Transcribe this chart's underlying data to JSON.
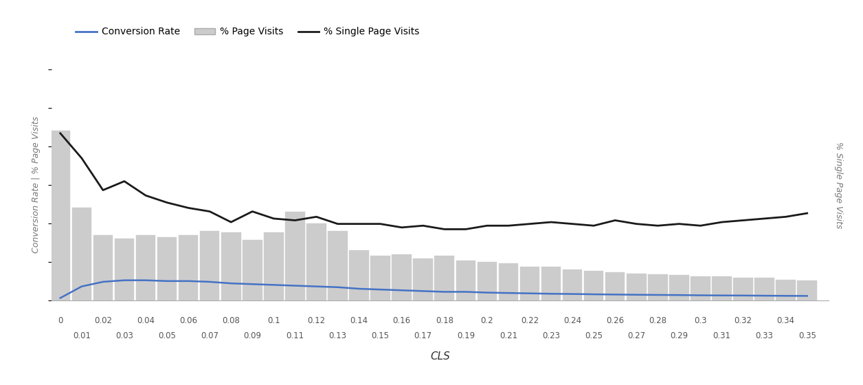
{
  "bar_x": [
    0,
    0.01,
    0.02,
    0.03,
    0.04,
    0.05,
    0.06,
    0.07,
    0.08,
    0.09,
    0.1,
    0.11,
    0.12,
    0.13,
    0.14,
    0.15,
    0.16,
    0.17,
    0.18,
    0.19,
    0.2,
    0.21,
    0.22,
    0.23,
    0.24,
    0.25,
    0.26,
    0.27,
    0.28,
    0.29,
    0.3,
    0.31,
    0.32,
    0.33,
    0.34,
    0.35
  ],
  "bar_heights": [
    22.0,
    12.0,
    8.5,
    8.0,
    8.5,
    8.2,
    8.5,
    9.0,
    8.8,
    7.8,
    8.8,
    11.5,
    10.0,
    9.0,
    6.5,
    5.8,
    6.0,
    5.4,
    5.8,
    5.2,
    5.0,
    4.8,
    4.4,
    4.4,
    4.0,
    3.8,
    3.6,
    3.5,
    3.4,
    3.3,
    3.1,
    3.1,
    2.9,
    2.9,
    2.7,
    2.6
  ],
  "conversion_rate_x": [
    0,
    0.01,
    0.02,
    0.03,
    0.04,
    0.05,
    0.06,
    0.07,
    0.08,
    0.09,
    0.1,
    0.11,
    0.12,
    0.13,
    0.14,
    0.15,
    0.16,
    0.17,
    0.18,
    0.19,
    0.2,
    0.21,
    0.22,
    0.23,
    0.24,
    0.25,
    0.26,
    0.27,
    0.28,
    0.29,
    0.3,
    0.31,
    0.32,
    0.33,
    0.34,
    0.35
  ],
  "conversion_rate": [
    0.3,
    1.8,
    2.4,
    2.6,
    2.6,
    2.5,
    2.5,
    2.4,
    2.2,
    2.1,
    2.0,
    1.9,
    1.8,
    1.7,
    1.5,
    1.4,
    1.3,
    1.2,
    1.1,
    1.1,
    1.0,
    0.95,
    0.9,
    0.85,
    0.82,
    0.78,
    0.75,
    0.72,
    0.7,
    0.68,
    0.65,
    0.63,
    0.62,
    0.6,
    0.58,
    0.57
  ],
  "single_page_visits_x": [
    0,
    0.01,
    0.02,
    0.03,
    0.04,
    0.05,
    0.06,
    0.07,
    0.08,
    0.09,
    0.1,
    0.11,
    0.12,
    0.13,
    0.14,
    0.15,
    0.16,
    0.17,
    0.18,
    0.19,
    0.2,
    0.21,
    0.22,
    0.23,
    0.24,
    0.25,
    0.26,
    0.27,
    0.28,
    0.29,
    0.3,
    0.31,
    0.32,
    0.33,
    0.34,
    0.35
  ],
  "single_page_visits": [
    94,
    80,
    62,
    67,
    59,
    55,
    52,
    50,
    44,
    50,
    46,
    45,
    47,
    43,
    43,
    43,
    41,
    42,
    40,
    40,
    42,
    42,
    43,
    44,
    43,
    42,
    45,
    43,
    42,
    43,
    42,
    44,
    45,
    46,
    47,
    49
  ],
  "left_ylim": [
    0,
    30
  ],
  "right_ylim": [
    0,
    130
  ],
  "bar_color": "#cccccc",
  "bar_edgecolor": "#cccccc",
  "conversion_color": "#4472C4",
  "single_page_color": "#1a1a1a",
  "ylabel_left": "Conversion Rate | % Page Visits",
  "ylabel_right": "% Single Page Visits",
  "xlabel": "CLS",
  "legend_items": [
    "Conversion Rate",
    "% Page Visits",
    "% Single Page Visits"
  ],
  "top_tick_x": [
    0,
    0.02,
    0.04,
    0.06,
    0.08,
    0.1,
    0.12,
    0.14,
    0.16,
    0.18,
    0.2,
    0.22,
    0.24,
    0.26,
    0.28,
    0.3,
    0.32,
    0.34
  ],
  "top_tick_labels": [
    "0",
    "0.02",
    "0.04",
    "0.06",
    "0.08",
    "0.1",
    "0.12",
    "0.14",
    "0.16",
    "0.18",
    "0.2",
    "0.22",
    "0.24",
    "0.26",
    "0.28",
    "0.3",
    "0.32",
    "0.34"
  ],
  "bot_tick_x": [
    0.01,
    0.03,
    0.05,
    0.07,
    0.09,
    0.11,
    0.13,
    0.15,
    0.17,
    0.19,
    0.21,
    0.23,
    0.25,
    0.27,
    0.29,
    0.31,
    0.33,
    0.35
  ],
  "bot_tick_labels": [
    "0.01",
    "0.03",
    "0.05",
    "0.07",
    "0.09",
    "0.11",
    "0.13",
    "0.15",
    "0.17",
    "0.19",
    "0.21",
    "0.23",
    "0.25",
    "0.27",
    "0.29",
    "0.31",
    "0.33",
    "0.35"
  ],
  "background_color": "#ffffff",
  "xlim": [
    -0.004,
    0.36
  ]
}
